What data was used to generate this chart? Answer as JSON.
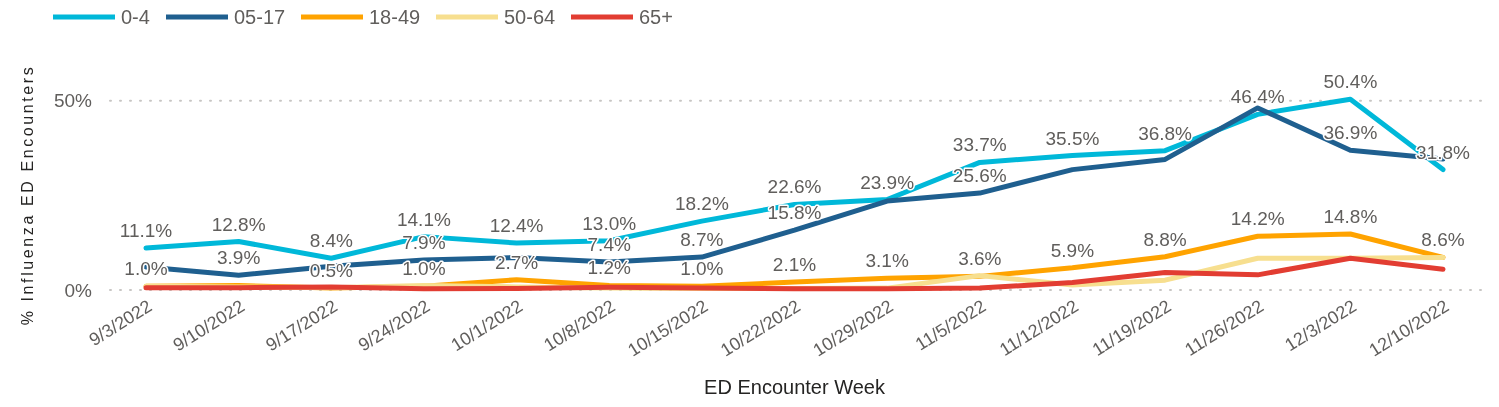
{
  "chart_data": {
    "type": "line",
    "xlabel": "ED Encounter Week",
    "ylabel": "% Influenza ED Encounters",
    "legend": "top left",
    "grid": "y",
    "categories": [
      "9/3/2022",
      "9/10/2022",
      "9/17/2022",
      "9/24/2022",
      "10/1/2022",
      "10/8/2022",
      "10/15/2022",
      "10/22/2022",
      "10/29/2022",
      "11/5/2022",
      "11/12/2022",
      "11/19/2022",
      "11/26/2022",
      "12/3/2022",
      "12/10/2022"
    ],
    "ylim": [
      0,
      50.4
    ],
    "yticks": [
      {
        "value": 0,
        "label": "0%"
      },
      {
        "value": 50,
        "label": "50%"
      }
    ],
    "series": [
      {
        "name": "0-4",
        "color": "#00b8d9",
        "values": [
          11.1,
          12.8,
          8.4,
          14.1,
          12.4,
          13.0,
          18.2,
          22.6,
          23.9,
          33.7,
          35.5,
          36.8,
          46.4,
          50.4,
          31.8
        ],
        "value_labels": [
          "11.1%",
          "12.8%",
          "8.4%",
          "14.1%",
          "12.4%",
          "13.0%",
          "18.2%",
          "22.6%",
          "23.9%",
          "33.7%",
          "35.5%",
          "36.8%",
          "46.4%",
          "50.4%",
          "31.8%"
        ]
      },
      {
        "name": "05-17",
        "color": "#1f5f8f",
        "values": [
          6.1,
          3.9,
          6.3,
          7.9,
          8.6,
          7.4,
          8.7,
          15.8,
          23.5,
          25.6,
          31.8,
          34.5,
          48.1,
          36.9,
          34.6
        ],
        "value_labels": [
          null,
          "3.9%",
          null,
          "7.9%",
          null,
          "7.4%",
          "8.7%",
          "15.8%",
          null,
          "25.6%",
          null,
          null,
          null,
          "36.9%",
          null
        ]
      },
      {
        "name": "18-49",
        "color": "#ffa300",
        "values": [
          1.0,
          1.2,
          0.5,
          1.0,
          2.7,
          1.2,
          1.0,
          2.1,
          3.1,
          3.6,
          5.9,
          8.8,
          14.2,
          14.8,
          8.6
        ],
        "value_labels": [
          "1.0%",
          null,
          "0.5%",
          "1.0%",
          "2.7%",
          "1.2%",
          "1.0%",
          "2.1%",
          "3.1%",
          "3.6%",
          "5.9%",
          "8.8%",
          "14.2%",
          "14.8%",
          "8.6%"
        ]
      },
      {
        "name": "50-64",
        "color": "#f7df8f",
        "values": [
          1.0,
          0.8,
          0.6,
          1.2,
          0.8,
          0.5,
          0.4,
          0.4,
          0.5,
          3.8,
          1.3,
          2.6,
          8.4,
          8.4,
          8.6
        ]
      },
      {
        "name": "65+",
        "color": "#e23d32",
        "values": [
          0.6,
          0.6,
          0.8,
          0.3,
          0.4,
          0.7,
          0.5,
          0.3,
          0.3,
          0.5,
          2.0,
          4.6,
          4.0,
          8.4,
          5.5
        ]
      }
    ]
  }
}
